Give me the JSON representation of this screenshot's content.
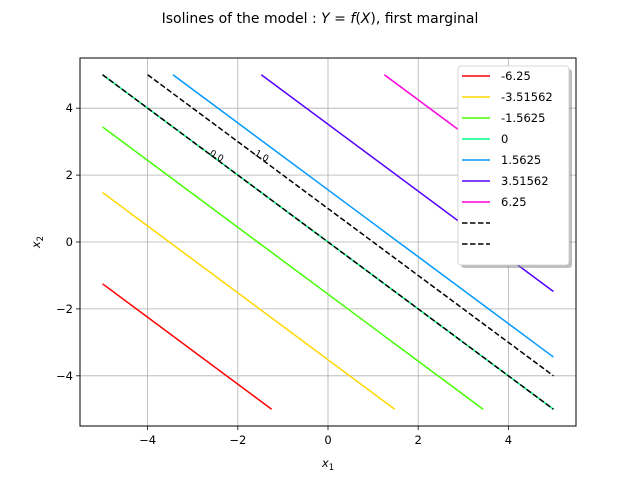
{
  "chart_data": {
    "type": "line",
    "title": "Isolines of the model : Y = f(X), first marginal",
    "xlabel": "x1",
    "ylabel": "x2",
    "xlim": [
      -5.5,
      5.5
    ],
    "ylim": [
      -5.5,
      5.5
    ],
    "xticks": [
      -4,
      -2,
      0,
      2,
      4
    ],
    "yticks": [
      -4,
      -2,
      0,
      2,
      4
    ],
    "xtick_labels": [
      "−4",
      "−2",
      "0",
      "2",
      "4"
    ],
    "ytick_labels": [
      "−4",
      "−2",
      "0",
      "2",
      "4"
    ],
    "grid": true,
    "legend_position": "top-right",
    "series": [
      {
        "name": "-6.25",
        "color": "#ff0000",
        "style": "solid",
        "x": [
          -5.0,
          -1.25
        ],
        "y": [
          -1.25,
          -5.0
        ]
      },
      {
        "name": "-3.51562",
        "color": "#ffd700",
        "style": "solid",
        "x": [
          -5.0,
          1.48
        ],
        "y": [
          1.48,
          -5.0
        ]
      },
      {
        "name": "-1.5625",
        "color": "#44ff00",
        "style": "solid",
        "x": [
          -5.0,
          3.44
        ],
        "y": [
          3.44,
          -5.0
        ]
      },
      {
        "name": "0",
        "color": "#00ff80",
        "style": "solid",
        "x": [
          -5.0,
          5.0
        ],
        "y": [
          5.0,
          -5.0
        ]
      },
      {
        "name": "1.5625",
        "color": "#0099ff",
        "style": "solid",
        "x": [
          -3.44,
          5.0
        ],
        "y": [
          5.0,
          -3.44
        ]
      },
      {
        "name": "3.51562",
        "color": "#5500ff",
        "style": "solid",
        "x": [
          -1.48,
          5.0
        ],
        "y": [
          5.0,
          -1.48
        ]
      },
      {
        "name": "6.25",
        "color": "#ff00dd",
        "style": "solid",
        "x": [
          1.25,
          5.0
        ],
        "y": [
          5.0,
          1.25
        ]
      },
      {
        "name": "",
        "color": "#000000",
        "style": "dashed",
        "x": [
          -5.0,
          5.0
        ],
        "y": [
          5.0,
          -5.0
        ]
      },
      {
        "name": "",
        "color": "#000000",
        "style": "dashed",
        "x": [
          -4.0,
          5.0
        ],
        "y": [
          5.0,
          -4.0
        ]
      }
    ],
    "annotations": [
      {
        "text": "0.0",
        "x": -2.5,
        "y": 2.5,
        "color": "#000000",
        "rotation": 30
      },
      {
        "text": "1.0",
        "x": -1.5,
        "y": 2.5,
        "color": "#000000",
        "rotation": 30
      }
    ]
  }
}
